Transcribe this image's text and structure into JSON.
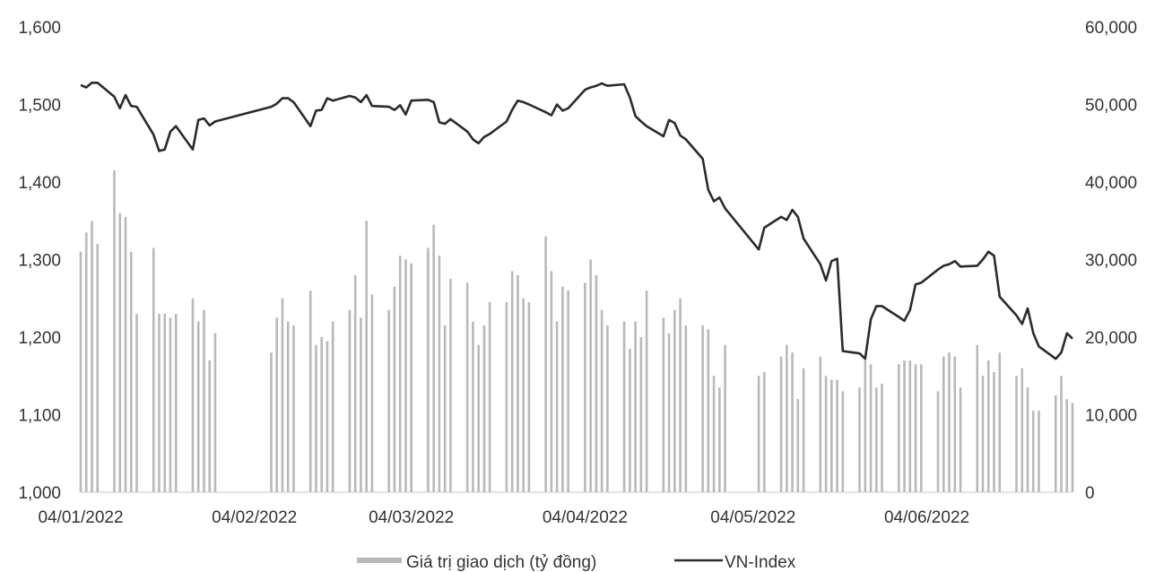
{
  "chart_data": {
    "type": "bar",
    "title": "",
    "xlabel": "",
    "ylabel": "",
    "secondary_ylabel": "",
    "combo": "bars (right axis) with line (left axis)",
    "grid": false,
    "legend_position": "bottom-center",
    "x_range": [
      "2022-01-04",
      "2022-06-30"
    ],
    "x_tick_labels": [
      "04/01/2022",
      "04/02/2022",
      "04/03/2022",
      "04/04/2022",
      "04/05/2022",
      "04/06/2022"
    ],
    "x_tick_dates": [
      "2022-01-04",
      "2022-02-04",
      "2022-03-04",
      "2022-04-04",
      "2022-05-04",
      "2022-06-04"
    ],
    "left_axis": {
      "ylim": [
        1000,
        1600
      ],
      "tick_labels": [
        "1,000",
        "1,100",
        "1,200",
        "1,300",
        "1,400",
        "1,500",
        "1,600"
      ]
    },
    "right_axis": {
      "ylim": [
        0,
        60000
      ],
      "tick_labels": [
        "0",
        "10,000",
        "20,000",
        "30,000",
        "40,000",
        "50,000",
        "60,000"
      ]
    },
    "colors": {
      "bars": "#b9b9b9",
      "line": "#2b2b2b",
      "text": "#333333"
    },
    "legend": [
      {
        "label": "Giá trị giao dịch (tỷ đồng)",
        "marker": "bar"
      },
      {
        "label": "VN-Index",
        "marker": "line"
      }
    ],
    "series": [
      {
        "name": "Giá trị giao dịch (tỷ đồng)",
        "axis": "right",
        "type": "bar",
        "points": [
          [
            "2022-01-04",
            31000
          ],
          [
            "2022-01-05",
            33500
          ],
          [
            "2022-01-06",
            35000
          ],
          [
            "2022-01-07",
            32000
          ],
          [
            "2022-01-10",
            41500
          ],
          [
            "2022-01-11",
            36000
          ],
          [
            "2022-01-12",
            35500
          ],
          [
            "2022-01-13",
            31000
          ],
          [
            "2022-01-14",
            23000
          ],
          [
            "2022-01-17",
            31500
          ],
          [
            "2022-01-18",
            23000
          ],
          [
            "2022-01-19",
            23000
          ],
          [
            "2022-01-20",
            22500
          ],
          [
            "2022-01-21",
            23000
          ],
          [
            "2022-01-24",
            25000
          ],
          [
            "2022-01-25",
            22000
          ],
          [
            "2022-01-26",
            23500
          ],
          [
            "2022-01-27",
            17000
          ],
          [
            "2022-01-28",
            20500
          ],
          [
            "2022-02-07",
            18000
          ],
          [
            "2022-02-08",
            22500
          ],
          [
            "2022-02-09",
            25000
          ],
          [
            "2022-02-10",
            22000
          ],
          [
            "2022-02-11",
            21500
          ],
          [
            "2022-02-14",
            26000
          ],
          [
            "2022-02-15",
            19000
          ],
          [
            "2022-02-16",
            20000
          ],
          [
            "2022-02-17",
            19500
          ],
          [
            "2022-02-18",
            22000
          ],
          [
            "2022-02-21",
            23500
          ],
          [
            "2022-02-22",
            28000
          ],
          [
            "2022-02-23",
            22500
          ],
          [
            "2022-02-24",
            35000
          ],
          [
            "2022-02-25",
            25500
          ],
          [
            "2022-02-28",
            23500
          ],
          [
            "2022-03-01",
            26500
          ],
          [
            "2022-03-02",
            30500
          ],
          [
            "2022-03-03",
            30000
          ],
          [
            "2022-03-04",
            29500
          ],
          [
            "2022-03-07",
            31500
          ],
          [
            "2022-03-08",
            34500
          ],
          [
            "2022-03-09",
            30500
          ],
          [
            "2022-03-10",
            21500
          ],
          [
            "2022-03-11",
            27500
          ],
          [
            "2022-03-14",
            27000
          ],
          [
            "2022-03-15",
            22000
          ],
          [
            "2022-03-16",
            19000
          ],
          [
            "2022-03-17",
            21500
          ],
          [
            "2022-03-18",
            24500
          ],
          [
            "2022-03-21",
            24500
          ],
          [
            "2022-03-22",
            28500
          ],
          [
            "2022-03-23",
            28000
          ],
          [
            "2022-03-24",
            25000
          ],
          [
            "2022-03-25",
            24500
          ],
          [
            "2022-03-28",
            33000
          ],
          [
            "2022-03-29",
            28500
          ],
          [
            "2022-03-30",
            22000
          ],
          [
            "2022-03-31",
            26500
          ],
          [
            "2022-04-01",
            26000
          ],
          [
            "2022-04-04",
            27000
          ],
          [
            "2022-04-05",
            30000
          ],
          [
            "2022-04-06",
            28000
          ],
          [
            "2022-04-07",
            23500
          ],
          [
            "2022-04-08",
            21500
          ],
          [
            "2022-04-11",
            22000
          ],
          [
            "2022-04-12",
            18500
          ],
          [
            "2022-04-13",
            22000
          ],
          [
            "2022-04-14",
            20000
          ],
          [
            "2022-04-15",
            26000
          ],
          [
            "2022-04-18",
            22500
          ],
          [
            "2022-04-19",
            20500
          ],
          [
            "2022-04-20",
            23500
          ],
          [
            "2022-04-21",
            25000
          ],
          [
            "2022-04-22",
            21500
          ],
          [
            "2022-04-25",
            21500
          ],
          [
            "2022-04-26",
            21000
          ],
          [
            "2022-04-27",
            15000
          ],
          [
            "2022-04-28",
            13500
          ],
          [
            "2022-04-29",
            19000
          ],
          [
            "2022-05-05",
            15000
          ],
          [
            "2022-05-06",
            15500
          ],
          [
            "2022-05-09",
            17500
          ],
          [
            "2022-05-10",
            19000
          ],
          [
            "2022-05-11",
            18000
          ],
          [
            "2022-05-12",
            12000
          ],
          [
            "2022-05-13",
            16000
          ],
          [
            "2022-05-16",
            17500
          ],
          [
            "2022-05-17",
            15000
          ],
          [
            "2022-05-18",
            14500
          ],
          [
            "2022-05-19",
            14500
          ],
          [
            "2022-05-20",
            13000
          ],
          [
            "2022-05-23",
            13500
          ],
          [
            "2022-05-24",
            17000
          ],
          [
            "2022-05-25",
            16500
          ],
          [
            "2022-05-26",
            13500
          ],
          [
            "2022-05-27",
            14000
          ],
          [
            "2022-05-30",
            16500
          ],
          [
            "2022-05-31",
            17000
          ],
          [
            "2022-06-01",
            17000
          ],
          [
            "2022-06-02",
            16500
          ],
          [
            "2022-06-03",
            16500
          ],
          [
            "2022-06-06",
            13000
          ],
          [
            "2022-06-07",
            17500
          ],
          [
            "2022-06-08",
            18000
          ],
          [
            "2022-06-09",
            17500
          ],
          [
            "2022-06-10",
            13500
          ],
          [
            "2022-06-13",
            19000
          ],
          [
            "2022-06-14",
            15000
          ],
          [
            "2022-06-15",
            17000
          ],
          [
            "2022-06-16",
            15500
          ],
          [
            "2022-06-17",
            18000
          ],
          [
            "2022-06-20",
            15000
          ],
          [
            "2022-06-21",
            16000
          ],
          [
            "2022-06-22",
            13500
          ],
          [
            "2022-06-23",
            10500
          ],
          [
            "2022-06-24",
            10500
          ],
          [
            "2022-06-27",
            12500
          ],
          [
            "2022-06-28",
            15000
          ],
          [
            "2022-06-29",
            12000
          ],
          [
            "2022-06-30",
            11500
          ]
        ]
      },
      {
        "name": "VN-Index",
        "axis": "left",
        "type": "line",
        "points": [
          [
            "2022-01-04",
            1525
          ],
          [
            "2022-01-05",
            1522
          ],
          [
            "2022-01-06",
            1528
          ],
          [
            "2022-01-07",
            1528
          ],
          [
            "2022-01-10",
            1510
          ],
          [
            "2022-01-11",
            1495
          ],
          [
            "2022-01-12",
            1512
          ],
          [
            "2022-01-13",
            1498
          ],
          [
            "2022-01-14",
            1497
          ],
          [
            "2022-01-17",
            1461
          ],
          [
            "2022-01-18",
            1440
          ],
          [
            "2022-01-19",
            1442
          ],
          [
            "2022-01-20",
            1465
          ],
          [
            "2022-01-21",
            1472
          ],
          [
            "2022-01-24",
            1442
          ],
          [
            "2022-01-25",
            1480
          ],
          [
            "2022-01-26",
            1482
          ],
          [
            "2022-01-27",
            1473
          ],
          [
            "2022-01-28",
            1478
          ],
          [
            "2022-02-07",
            1497
          ],
          [
            "2022-02-08",
            1501
          ],
          [
            "2022-02-09",
            1508
          ],
          [
            "2022-02-10",
            1508
          ],
          [
            "2022-02-11",
            1503
          ],
          [
            "2022-02-14",
            1472
          ],
          [
            "2022-02-15",
            1492
          ],
          [
            "2022-02-16",
            1493
          ],
          [
            "2022-02-17",
            1508
          ],
          [
            "2022-02-18",
            1505
          ],
          [
            "2022-02-21",
            1511
          ],
          [
            "2022-02-22",
            1509
          ],
          [
            "2022-02-23",
            1503
          ],
          [
            "2022-02-24",
            1512
          ],
          [
            "2022-02-25",
            1498
          ],
          [
            "2022-02-28",
            1497
          ],
          [
            "2022-03-01",
            1493
          ],
          [
            "2022-03-02",
            1499
          ],
          [
            "2022-03-03",
            1487
          ],
          [
            "2022-03-04",
            1505
          ],
          [
            "2022-03-07",
            1506
          ],
          [
            "2022-03-08",
            1503
          ],
          [
            "2022-03-09",
            1477
          ],
          [
            "2022-03-10",
            1475
          ],
          [
            "2022-03-11",
            1481
          ],
          [
            "2022-03-14",
            1465
          ],
          [
            "2022-03-15",
            1455
          ],
          [
            "2022-03-16",
            1450
          ],
          [
            "2022-03-17",
            1458
          ],
          [
            "2022-03-18",
            1462
          ],
          [
            "2022-03-21",
            1478
          ],
          [
            "2022-03-22",
            1493
          ],
          [
            "2022-03-23",
            1505
          ],
          [
            "2022-03-24",
            1503
          ],
          [
            "2022-03-25",
            1500
          ],
          [
            "2022-03-28",
            1490
          ],
          [
            "2022-03-29",
            1486
          ],
          [
            "2022-03-30",
            1500
          ],
          [
            "2022-03-31",
            1492
          ],
          [
            "2022-04-01",
            1495
          ],
          [
            "2022-04-04",
            1519
          ],
          [
            "2022-04-05",
            1522
          ],
          [
            "2022-04-06",
            1524
          ],
          [
            "2022-04-07",
            1527
          ],
          [
            "2022-04-08",
            1524
          ],
          [
            "2022-04-11",
            1526
          ],
          [
            "2022-04-12",
            1509
          ],
          [
            "2022-04-13",
            1485
          ],
          [
            "2022-04-14",
            1478
          ],
          [
            "2022-04-15",
            1472
          ],
          [
            "2022-04-18",
            1459
          ],
          [
            "2022-04-19",
            1480
          ],
          [
            "2022-04-20",
            1476
          ],
          [
            "2022-04-21",
            1460
          ],
          [
            "2022-04-22",
            1455
          ],
          [
            "2022-04-25",
            1430
          ],
          [
            "2022-04-26",
            1390
          ],
          [
            "2022-04-27",
            1375
          ],
          [
            "2022-04-28",
            1380
          ],
          [
            "2022-04-29",
            1366
          ],
          [
            "2022-05-05",
            1313
          ],
          [
            "2022-05-06",
            1341
          ],
          [
            "2022-05-09",
            1355
          ],
          [
            "2022-05-10",
            1351
          ],
          [
            "2022-05-11",
            1364
          ],
          [
            "2022-05-12",
            1355
          ],
          [
            "2022-05-13",
            1327
          ],
          [
            "2022-05-16",
            1294
          ],
          [
            "2022-05-17",
            1273
          ],
          [
            "2022-05-18",
            1298
          ],
          [
            "2022-05-19",
            1301
          ],
          [
            "2022-05-20",
            1182
          ],
          [
            "2022-05-23",
            1179
          ],
          [
            "2022-05-24",
            1172
          ],
          [
            "2022-05-25",
            1223
          ],
          [
            "2022-05-26",
            1240
          ],
          [
            "2022-05-27",
            1240
          ],
          [
            "2022-05-30",
            1226
          ],
          [
            "2022-05-31",
            1221
          ],
          [
            "2022-06-01",
            1235
          ],
          [
            "2022-06-02",
            1268
          ],
          [
            "2022-06-03",
            1270
          ],
          [
            "2022-06-06",
            1287
          ],
          [
            "2022-06-07",
            1292
          ],
          [
            "2022-06-08",
            1294
          ],
          [
            "2022-06-09",
            1298
          ],
          [
            "2022-06-10",
            1291
          ],
          [
            "2022-06-13",
            1292
          ],
          [
            "2022-06-14",
            1300
          ],
          [
            "2022-06-15",
            1310
          ],
          [
            "2022-06-16",
            1305
          ],
          [
            "2022-06-17",
            1252
          ],
          [
            "2022-06-20",
            1228
          ],
          [
            "2022-06-21",
            1217
          ],
          [
            "2022-06-22",
            1237
          ],
          [
            "2022-06-23",
            1205
          ],
          [
            "2022-06-24",
            1188
          ],
          [
            "2022-06-27",
            1172
          ],
          [
            "2022-06-28",
            1180
          ],
          [
            "2022-06-29",
            1205
          ],
          [
            "2022-06-30",
            1198
          ]
        ]
      }
    ]
  }
}
